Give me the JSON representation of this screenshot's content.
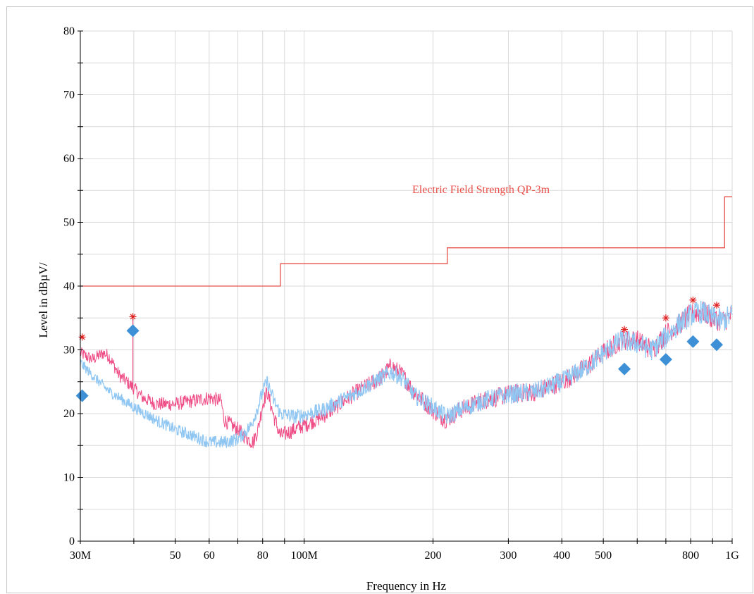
{
  "chart_data": {
    "type": "line",
    "xlabel": "Frequency in Hz",
    "ylabel": "Level in dBµV/",
    "x_scale": "log",
    "xlim": [
      30000000,
      1000000000
    ],
    "ylim": [
      0,
      80
    ],
    "y_ticks": [
      0,
      10,
      20,
      30,
      40,
      50,
      60,
      70,
      80
    ],
    "x_tick_labels": [
      {
        "value": 30000000,
        "label": "30M"
      },
      {
        "value": 50000000,
        "label": "50"
      },
      {
        "value": 60000000,
        "label": "60"
      },
      {
        "value": 80000000,
        "label": "80"
      },
      {
        "value": 100000000,
        "label": "100M"
      },
      {
        "value": 200000000,
        "label": "200"
      },
      {
        "value": 300000000,
        "label": "300"
      },
      {
        "value": 400000000,
        "label": "400"
      },
      {
        "value": 500000000,
        "label": "500"
      },
      {
        "value": 800000000,
        "label": "800"
      },
      {
        "value": 1000000000,
        "label": "1G"
      }
    ],
    "x_minor_ticks": [
      40000000,
      70000000,
      90000000,
      600000000,
      700000000,
      900000000
    ],
    "grid": true,
    "colors": {
      "limit": "#e8504a",
      "trace_pink": "#ee4d86",
      "trace_blue": "#8fc6f2",
      "peak_marker": "#e02020",
      "qp_marker": "#3d8fd6"
    },
    "limit_line": {
      "label": "Electric Field Strength QP-3m",
      "steps": [
        {
          "from": 30000000,
          "to": 88000000,
          "level": 40.0
        },
        {
          "from": 88000000,
          "to": 216000000,
          "level": 43.5
        },
        {
          "from": 216000000,
          "to": 960000000,
          "level": 46.0
        },
        {
          "from": 960000000,
          "to": 1000000000,
          "level": 54.0
        }
      ]
    },
    "series": [
      {
        "key": "pink_trace",
        "x": [
          30000000,
          32000000,
          34000000,
          35000000,
          37000000,
          40000000,
          42000000,
          45000000,
          50000000,
          55000000,
          60000000,
          64000000,
          65000000,
          70000000,
          74000000,
          76000000,
          78000000,
          80000000,
          82000000,
          85000000,
          88000000,
          95000000,
          110000000,
          130000000,
          150000000,
          160000000,
          170000000,
          180000000,
          200000000,
          215000000,
          230000000,
          260000000,
          300000000,
          350000000,
          400000000,
          450000000,
          500000000,
          550000000,
          600000000,
          650000000,
          700000000,
          750000000,
          800000000,
          850000000,
          900000000,
          950000000,
          1000000000
        ],
        "y": [
          29.5,
          28.5,
          29.5,
          29.0,
          26.0,
          24.0,
          22.5,
          21.5,
          21.5,
          22.0,
          22.5,
          22.0,
          19.0,
          17.5,
          16.0,
          15.5,
          17.5,
          21.5,
          23.5,
          19.5,
          16.5,
          17.5,
          19.5,
          23.0,
          25.5,
          27.5,
          26.0,
          23.5,
          20.5,
          19.0,
          20.5,
          22.0,
          23.0,
          23.5,
          25.0,
          27.0,
          29.5,
          31.5,
          31.5,
          30.0,
          32.5,
          34.0,
          35.5,
          36.0,
          35.0,
          34.5,
          35.5
        ]
      },
      {
        "key": "blue_trace",
        "x": [
          30000000,
          32000000,
          35000000,
          38000000,
          40000000,
          45000000,
          50000000,
          55000000,
          60000000,
          65000000,
          70000000,
          75000000,
          78000000,
          80000000,
          82000000,
          85000000,
          88000000,
          95000000,
          110000000,
          130000000,
          150000000,
          160000000,
          170000000,
          180000000,
          200000000,
          215000000,
          230000000,
          260000000,
          300000000,
          350000000,
          400000000,
          450000000,
          500000000,
          550000000,
          600000000,
          650000000,
          700000000,
          750000000,
          800000000,
          850000000,
          900000000,
          950000000,
          1000000000
        ],
        "y": [
          28.0,
          26.0,
          23.5,
          22.0,
          21.0,
          19.0,
          17.5,
          16.5,
          15.5,
          15.5,
          16.0,
          18.0,
          21.0,
          23.5,
          25.0,
          22.0,
          20.0,
          19.5,
          20.5,
          23.0,
          25.5,
          26.5,
          25.5,
          23.0,
          21.0,
          19.5,
          20.5,
          22.0,
          23.0,
          23.5,
          25.0,
          27.0,
          29.5,
          31.5,
          31.0,
          30.0,
          32.0,
          34.0,
          35.5,
          36.0,
          35.0,
          34.5,
          35.5
        ]
      }
    ],
    "peak_markers": {
      "x": [
        30300000,
        39800000,
        560000000,
        700000000,
        810000000,
        920000000
      ],
      "y": [
        32.0,
        35.2,
        33.2,
        35.0,
        37.8,
        37.0
      ]
    },
    "qp_markers": {
      "x": [
        30300000,
        39800000,
        560000000,
        700000000,
        810000000,
        920000000
      ],
      "y": [
        22.8,
        33.0,
        27.0,
        28.5,
        31.3,
        30.8
      ]
    }
  }
}
